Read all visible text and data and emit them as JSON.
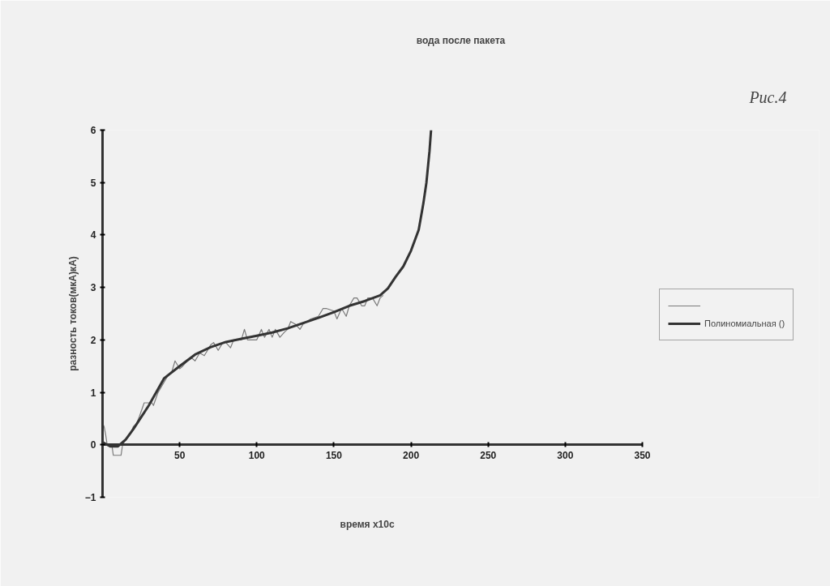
{
  "chart_data": {
    "type": "line",
    "title": "вода после пакета",
    "xlabel": "время x10с",
    "ylabel": "разность токов(мкА)кА)",
    "annotations": [
      "Рис.4"
    ],
    "xlim": [
      0,
      350
    ],
    "ylim": [
      -1,
      6
    ],
    "xticks": [
      {
        "value": 0,
        "label": null
      },
      50,
      100,
      150,
      200,
      250,
      300,
      350
    ],
    "yticks": [
      -1,
      0,
      1,
      2,
      3,
      4,
      5,
      6
    ],
    "grid": false,
    "legend": "right",
    "marker": "none",
    "line_style": "solid",
    "series": [
      {
        "color": "#7a7a7a",
        "x": [
          0,
          1,
          2,
          3,
          6,
          7,
          12,
          13,
          15,
          18,
          20,
          22,
          24,
          27,
          32,
          33,
          36,
          40,
          42,
          45,
          47,
          50,
          52,
          55,
          58,
          60,
          63,
          66,
          70,
          72,
          75,
          78,
          80,
          83,
          85,
          90,
          92,
          94,
          100,
          103,
          105,
          108,
          110,
          112,
          115,
          118,
          120,
          122,
          125,
          128,
          130,
          135,
          140,
          143,
          145,
          150,
          152,
          155,
          158,
          160,
          163,
          165,
          168,
          170,
          172,
          175,
          178,
          180,
          182
        ],
        "values": [
          0.4,
          0.35,
          0.2,
          0,
          0,
          -0.2,
          -0.2,
          0,
          0.1,
          0.2,
          0.35,
          0.4,
          0.55,
          0.8,
          0.8,
          0.75,
          1.0,
          1.2,
          1.3,
          1.4,
          1.6,
          1.45,
          1.5,
          1.6,
          1.65,
          1.6,
          1.75,
          1.7,
          1.9,
          1.95,
          1.8,
          1.95,
          1.95,
          1.85,
          2.0,
          2.0,
          2.2,
          2.0,
          2.0,
          2.2,
          2.05,
          2.2,
          2.05,
          2.2,
          2.05,
          2.15,
          2.2,
          2.35,
          2.3,
          2.2,
          2.3,
          2.4,
          2.45,
          2.6,
          2.6,
          2.55,
          2.4,
          2.6,
          2.45,
          2.65,
          2.8,
          2.8,
          2.65,
          2.65,
          2.8,
          2.8,
          2.65,
          2.8,
          2.85
        ]
      },
      {
        "name": "Полиномиальная ()",
        "color": "#333333",
        "x": [
          0,
          5,
          10,
          15,
          20,
          30,
          40,
          50,
          60,
          70,
          80,
          90,
          100,
          110,
          120,
          130,
          140,
          150,
          160,
          170,
          180,
          185,
          190,
          195,
          200,
          205,
          208,
          210,
          212,
          213
        ],
        "values": [
          0.05,
          -0.03,
          -0.03,
          0.1,
          0.3,
          0.75,
          1.27,
          1.5,
          1.72,
          1.86,
          1.96,
          2.02,
          2.08,
          2.14,
          2.22,
          2.32,
          2.42,
          2.53,
          2.65,
          2.74,
          2.85,
          2.98,
          3.2,
          3.4,
          3.7,
          4.1,
          4.6,
          5.0,
          5.6,
          6.0
        ]
      }
    ]
  }
}
